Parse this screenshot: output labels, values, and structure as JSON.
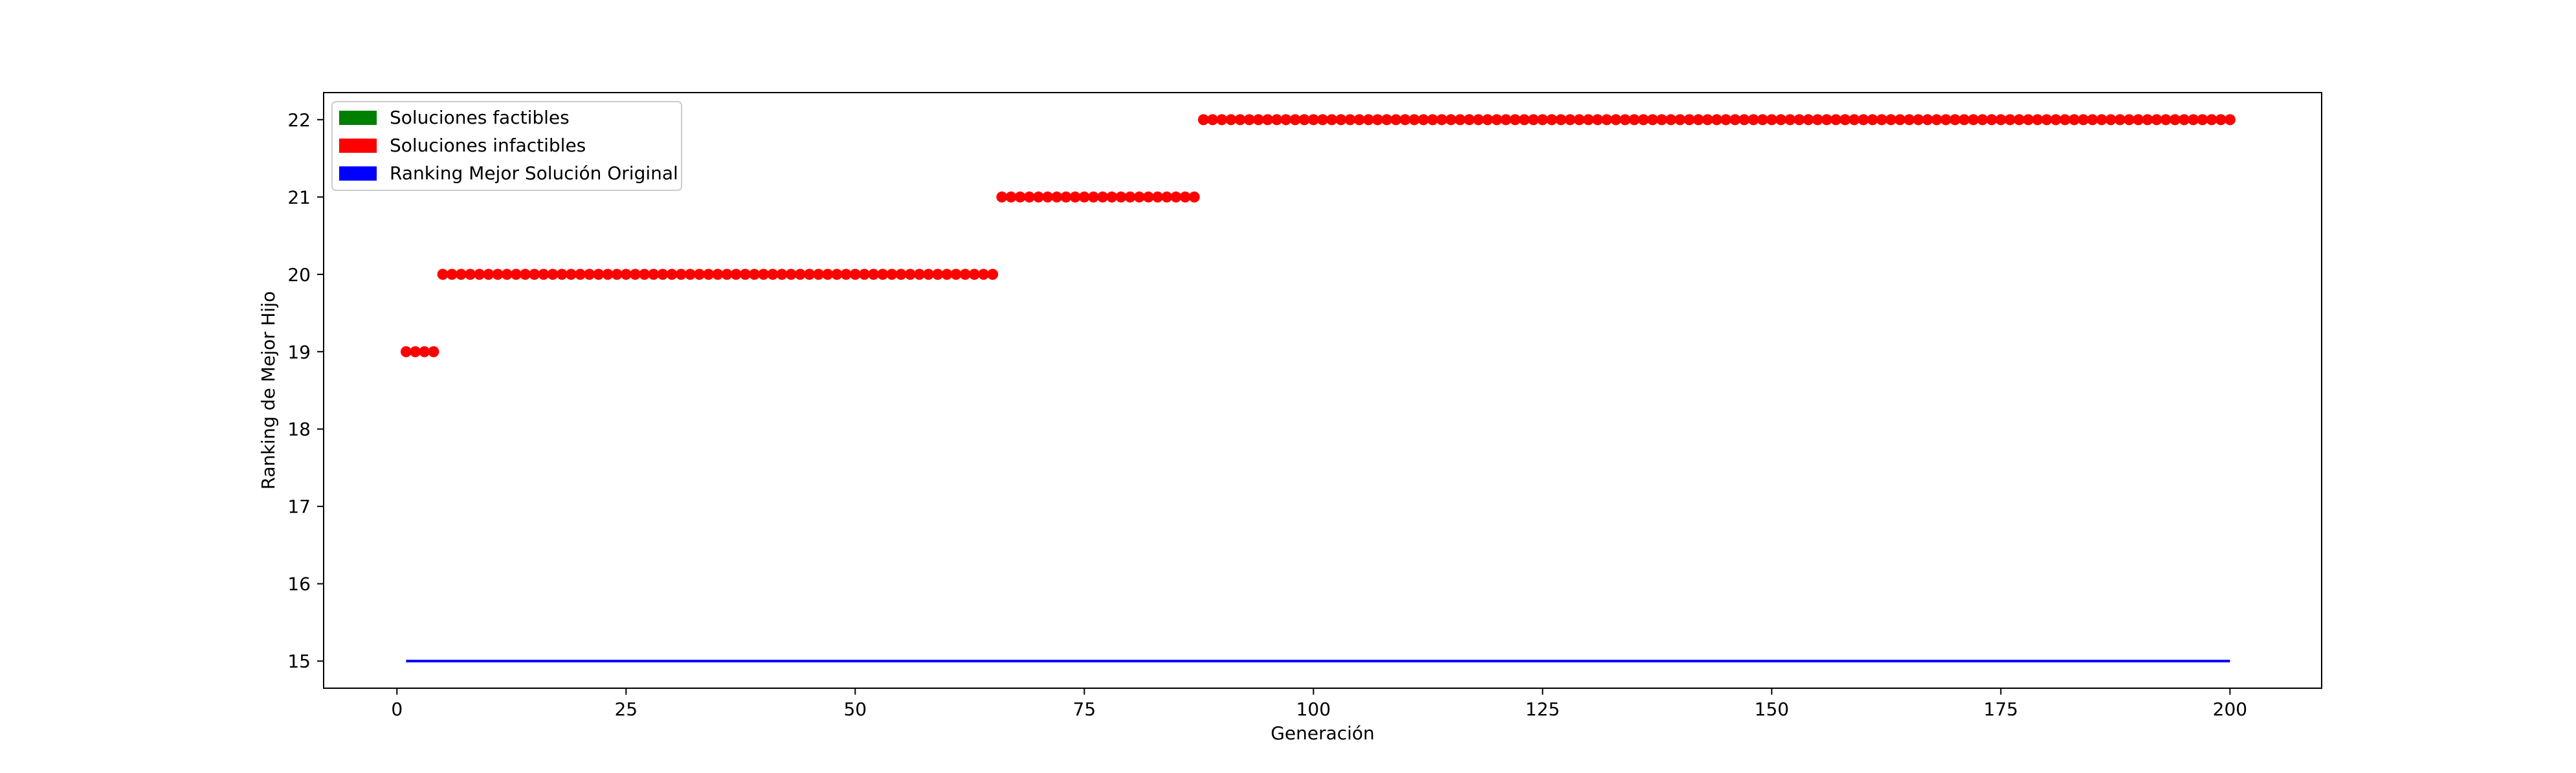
{
  "chart_data": {
    "type": "scatter",
    "title": "",
    "xlabel": "Generación",
    "ylabel": "Ranking de Mejor Hijo",
    "xlim": [
      -8,
      210
    ],
    "ylim": [
      14.65,
      22.35
    ],
    "xticks": [
      0,
      25,
      50,
      75,
      100,
      125,
      150,
      175,
      200
    ],
    "yticks": [
      15,
      16,
      17,
      18,
      19,
      20,
      21,
      22
    ],
    "grid": false,
    "legend_position": "top-left",
    "legend": [
      {
        "label": "Soluciones factibles",
        "color": "#008000"
      },
      {
        "label": "Soluciones infactibles",
        "color": "#ff0000"
      },
      {
        "label": "Ranking Mejor Solución Original",
        "color": "#0000ff"
      }
    ],
    "series": [
      {
        "name": "Soluciones infactibles",
        "kind": "points",
        "color": "#ff0000",
        "segments": [
          {
            "x_start": 1,
            "x_end": 4,
            "y": 19
          },
          {
            "x_start": 5,
            "x_end": 65,
            "y": 20
          },
          {
            "x_start": 66,
            "x_end": 87,
            "y": 21
          },
          {
            "x_start": 88,
            "x_end": 200,
            "y": 22
          }
        ]
      },
      {
        "name": "Ranking Mejor Solución Original",
        "kind": "line",
        "color": "#0000ff",
        "x": [
          1,
          200
        ],
        "y": [
          15,
          15
        ]
      }
    ]
  }
}
